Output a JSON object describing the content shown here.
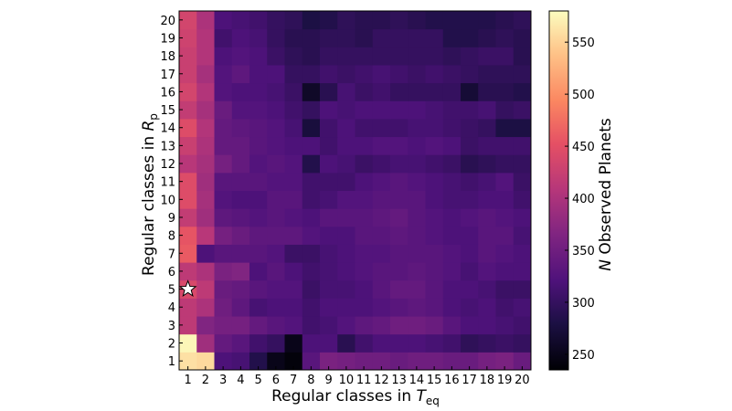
{
  "chart_data": {
    "type": "heatmap",
    "xlabel": "Regular classes in T_eq",
    "ylabel": "Regular classes in R_p",
    "xlabel_main": "Regular classes in ",
    "xlabel_symbol": "T",
    "xlabel_sub": "eq",
    "ylabel_main": "Regular classes in ",
    "ylabel_symbol": "R",
    "ylabel_sub": "p",
    "x_categories": [
      "1",
      "2",
      "3",
      "4",
      "5",
      "6",
      "7",
      "8",
      "9",
      "10",
      "11",
      "12",
      "13",
      "14",
      "15",
      "16",
      "17",
      "18",
      "19",
      "20"
    ],
    "y_categories": [
      "1",
      "2",
      "3",
      "4",
      "5",
      "6",
      "7",
      "8",
      "9",
      "10",
      "11",
      "12",
      "13",
      "14",
      "15",
      "16",
      "17",
      "18",
      "19",
      "20"
    ],
    "colormap": "magma",
    "colorbar": {
      "label": "N Observed Planets",
      "label_symbol": "N",
      "label_rest": " Observed Planets",
      "range": [
        235,
        580
      ],
      "ticks": [
        250,
        300,
        350,
        400,
        450,
        500,
        550
      ]
    },
    "marker": {
      "symbol": "star",
      "x": "1",
      "y": "5"
    },
    "values": [
      [
        560,
        555,
        320,
        315,
        285,
        250,
        240,
        330,
        360,
        355,
        350,
        350,
        345,
        350,
        350,
        345,
        345,
        355,
        360,
        345
      ],
      [
        575,
        390,
        340,
        330,
        310,
        300,
        250,
        320,
        320,
        290,
        310,
        320,
        320,
        320,
        315,
        310,
        295,
        300,
        305,
        300
      ],
      [
        415,
        365,
        355,
        355,
        340,
        330,
        325,
        310,
        315,
        325,
        335,
        340,
        350,
        350,
        345,
        330,
        320,
        320,
        315,
        310
      ],
      [
        415,
        400,
        350,
        335,
        315,
        320,
        320,
        310,
        320,
        320,
        320,
        325,
        330,
        335,
        330,
        320,
        315,
        320,
        310,
        315
      ],
      [
        440,
        415,
        345,
        340,
        330,
        325,
        325,
        305,
        315,
        315,
        320,
        330,
        340,
        340,
        330,
        320,
        320,
        315,
        305,
        305
      ],
      [
        415,
        400,
        360,
        365,
        320,
        330,
        320,
        310,
        315,
        320,
        325,
        330,
        330,
        335,
        330,
        325,
        315,
        325,
        320,
        320
      ],
      [
        460,
        320,
        330,
        330,
        330,
        325,
        305,
        305,
        315,
        320,
        325,
        325,
        330,
        330,
        330,
        325,
        320,
        330,
        325,
        320
      ],
      [
        455,
        410,
        355,
        345,
        335,
        335,
        335,
        325,
        320,
        320,
        330,
        330,
        335,
        330,
        325,
        320,
        320,
        330,
        330,
        315
      ],
      [
        420,
        390,
        335,
        330,
        325,
        330,
        325,
        320,
        330,
        330,
        330,
        335,
        340,
        330,
        325,
        320,
        325,
        330,
        325,
        320
      ],
      [
        445,
        395,
        325,
        320,
        320,
        330,
        330,
        310,
        315,
        325,
        325,
        330,
        330,
        330,
        320,
        315,
        315,
        320,
        320,
        310
      ],
      [
        445,
        390,
        330,
        330,
        330,
        325,
        325,
        310,
        310,
        310,
        320,
        325,
        330,
        325,
        320,
        315,
        310,
        315,
        325,
        305
      ],
      [
        410,
        395,
        355,
        340,
        325,
        330,
        325,
        285,
        320,
        315,
        305,
        310,
        315,
        315,
        310,
        305,
        290,
        295,
        300,
        300
      ],
      [
        425,
        400,
        340,
        340,
        330,
        325,
        320,
        320,
        310,
        320,
        320,
        325,
        325,
        320,
        325,
        320,
        305,
        310,
        310,
        310
      ],
      [
        445,
        405,
        340,
        335,
        330,
        325,
        315,
        275,
        310,
        320,
        310,
        310,
        310,
        315,
        315,
        310,
        305,
        300,
        280,
        280
      ],
      [
        420,
        395,
        345,
        325,
        325,
        320,
        310,
        300,
        320,
        315,
        320,
        320,
        320,
        320,
        315,
        310,
        310,
        315,
        300,
        305
      ],
      [
        435,
        405,
        325,
        320,
        320,
        315,
        305,
        260,
        290,
        315,
        305,
        310,
        300,
        300,
        300,
        300,
        270,
        290,
        290,
        285
      ],
      [
        425,
        395,
        325,
        335,
        320,
        320,
        300,
        300,
        310,
        305,
        310,
        315,
        310,
        305,
        310,
        305,
        300,
        295,
        295,
        295
      ],
      [
        425,
        405,
        320,
        325,
        320,
        305,
        295,
        290,
        300,
        300,
        300,
        300,
        300,
        300,
        300,
        295,
        300,
        305,
        305,
        290
      ],
      [
        430,
        405,
        310,
        320,
        315,
        300,
        290,
        290,
        295,
        295,
        290,
        300,
        300,
        300,
        300,
        285,
        285,
        290,
        295,
        290
      ],
      [
        435,
        400,
        320,
        315,
        310,
        300,
        295,
        280,
        285,
        295,
        290,
        290,
        295,
        290,
        285,
        285,
        285,
        285,
        290,
        295
      ]
    ]
  }
}
